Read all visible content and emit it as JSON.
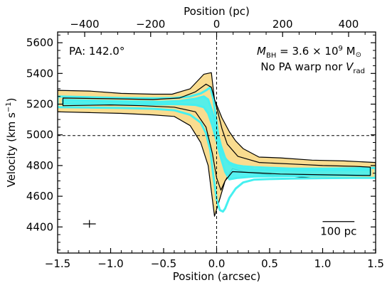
{
  "chart_data": {
    "type": "position-velocity diagram",
    "xlabel_bottom": "Position (arcsec)",
    "xlabel_top": "Position (pc)",
    "ylabel": "Velocity (km s",
    "ylabel_sup": "−1",
    "ylabel_end": ")",
    "xlim": [
      -1.5,
      1.5
    ],
    "ylim": [
      4230,
      5670
    ],
    "top_xlim": [
      -482,
      482
    ],
    "xticks_bottom": [
      -1.5,
      -1.0,
      -0.5,
      0.0,
      0.5,
      1.0,
      1.5
    ],
    "xtick_labels_bottom": [
      "−1.5",
      "−1.0",
      "−0.5",
      "0.0",
      "0.5",
      "1.0",
      "1.5"
    ],
    "xticks_top": [
      -400,
      -200,
      0,
      200,
      400
    ],
    "xtick_labels_top": [
      "−400",
      "−200",
      "0",
      "200",
      "400"
    ],
    "yticks": [
      4400,
      4600,
      4800,
      5000,
      5200,
      5400,
      5600
    ],
    "ytick_labels": [
      "4400",
      "4600",
      "4800",
      "5000",
      "5200",
      "5400",
      "5600"
    ],
    "annotations": {
      "pa": "PA: 142.0°",
      "mbh_symbol": "M",
      "mbh_sub": "BH",
      "mbh_value": " = 3.6 × 10",
      "mbh_exp": "9",
      "mbh_unit": " M",
      "mbh_unit_sub": "⊙",
      "line2": "No PA warp nor ",
      "vrad_symbol": "V",
      "vrad_sub": "rad",
      "scalebar_label": "100 pc"
    },
    "scalebar": {
      "x_start": 1.0,
      "x_end": 1.3,
      "y": 4435
    },
    "reference_lines": {
      "systemic_velocity": 4995,
      "center_position": 0.0
    },
    "error_bar": {
      "x": -1.2,
      "y": 4420,
      "dx": 0.06,
      "dy": 25
    },
    "series": [
      {
        "kind": "data_outer_contour",
        "color": "#f9dc8f",
        "x": [
          -1.5,
          -1.2,
          -0.9,
          -0.6,
          -0.42,
          -0.25,
          -0.12,
          -0.05,
          -0.02,
          0.05,
          0.12,
          0.18,
          0.25,
          0.4,
          0.6,
          0.9,
          1.2,
          1.5,
          1.5,
          1.2,
          0.9,
          0.7,
          0.5,
          0.4,
          0.25,
          0.15,
          0.08,
          0.02,
          -0.02,
          -0.08,
          -0.15,
          -0.25,
          -0.4,
          -0.6,
          -0.9,
          -1.2,
          -1.5
        ],
        "y": [
          5290,
          5285,
          5270,
          5265,
          5265,
          5300,
          5395,
          5405,
          5230,
          5110,
          5020,
          4960,
          4910,
          4855,
          4850,
          4835,
          4830,
          4820,
          4720,
          4720,
          4720,
          4730,
          4740,
          4745,
          4760,
          4780,
          4700,
          4560,
          4470,
          4800,
          4950,
          5060,
          5120,
          5130,
          5140,
          5145,
          5150
        ]
      },
      {
        "kind": "model_outer",
        "color": "#45f0f0",
        "x": [
          -1.5,
          -1.2,
          -0.9,
          -0.6,
          -0.4,
          -0.25,
          -0.15,
          -0.1,
          -0.06,
          -0.03,
          0.0,
          0.03,
          0.06,
          0.09,
          0.12,
          0.16,
          0.2,
          0.25,
          0.35,
          0.5,
          0.7,
          1.0,
          1.3,
          1.5,
          1.5,
          1.3,
          1.0,
          0.7,
          0.5,
          0.35,
          0.25,
          0.18,
          0.12,
          0.08,
          0.06,
          0.03,
          0.0,
          -0.03,
          -0.06,
          -0.1,
          -0.15,
          -0.25,
          -0.4,
          -0.6,
          -0.9,
          -1.2,
          -1.5
        ],
        "y": [
          5250,
          5245,
          5240,
          5238,
          5240,
          5250,
          5270,
          5290,
          5310,
          5230,
          5080,
          4920,
          4870,
          4840,
          4820,
          4808,
          4800,
          4795,
          4790,
          4785,
          4780,
          4780,
          4782,
          4785,
          4720,
          4720,
          4718,
          4715,
          4712,
          4708,
          4690,
          4650,
          4590,
          4520,
          4500,
          4510,
          4580,
          4730,
          4900,
          5010,
          5080,
          5130,
          5160,
          5170,
          5175,
          5178,
          5180
        ]
      },
      {
        "kind": "model_inner",
        "color": "#45f0f0",
        "x": [
          -1.45,
          -1.1,
          -0.8,
          -0.55,
          -0.35,
          -0.2,
          -0.12,
          -0.08,
          -0.04,
          0.0,
          0.04,
          0.08,
          0.12,
          0.2,
          0.35,
          0.55,
          0.8,
          1.1,
          1.45,
          1.45,
          1.1,
          0.8,
          0.55,
          0.35,
          0.2,
          0.12,
          0.08,
          0.04,
          0.0,
          -0.04,
          -0.08,
          -0.12,
          -0.2,
          -0.35,
          -0.55,
          -0.8,
          -1.1,
          -1.45
        ],
        "y": [
          5228,
          5222,
          5218,
          5216,
          5220,
          5235,
          5250,
          5230,
          5150,
          5040,
          4930,
          4850,
          4810,
          4785,
          4775,
          4770,
          4768,
          4770,
          4772,
          4738,
          4735,
          4733,
          4730,
          4728,
          4720,
          4710,
          4760,
          4850,
          4960,
          5060,
          5140,
          5180,
          5195,
          5200,
          5198,
          5198,
          5200,
          5202
        ]
      },
      {
        "kind": "data_inner_contour",
        "color": "#000000",
        "x": [
          -1.45,
          -1.0,
          -0.6,
          -0.35,
          -0.2,
          -0.1,
          -0.05,
          0.0,
          0.05,
          0.1,
          0.2,
          0.4,
          0.7,
          1.0,
          1.3,
          1.45,
          1.45,
          1.0,
          0.6,
          0.3,
          0.15,
          0.08,
          0.04,
          0.0,
          -0.04,
          -0.1,
          -0.2,
          -0.4,
          -0.7,
          -1.0,
          -1.45
        ],
        "y": [
          5240,
          5235,
          5230,
          5240,
          5280,
          5330,
          5310,
          5180,
          5040,
          4940,
          4860,
          4820,
          4810,
          4800,
          4795,
          4790,
          4735,
          4740,
          4745,
          4755,
          4760,
          4700,
          4640,
          4720,
          4880,
          5050,
          5150,
          5180,
          5190,
          5195,
          5190
        ]
      }
    ]
  }
}
